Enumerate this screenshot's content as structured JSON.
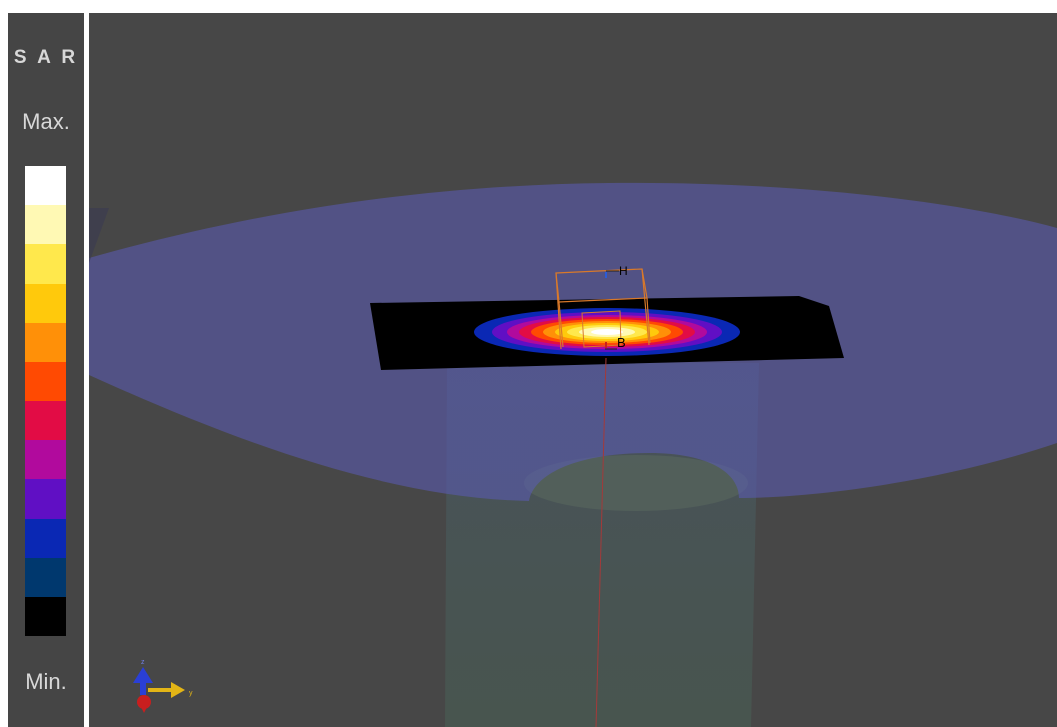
{
  "legend": {
    "title": "S A R",
    "max_label": "Max.",
    "min_label": "Min.",
    "colors": [
      "#ffffff",
      "#fff9b4",
      "#ffe84c",
      "#ffc90c",
      "#ff9008",
      "#ff4a02",
      "#e20c45",
      "#b10a9d",
      "#600fc4",
      "#0a28b4",
      "#00386e",
      "#000000"
    ]
  },
  "viewport": {
    "background": "#474747",
    "probe_labels": {
      "top": "H",
      "bottom": "B"
    },
    "axis_labels": {
      "y": "y",
      "z": "z"
    }
  }
}
